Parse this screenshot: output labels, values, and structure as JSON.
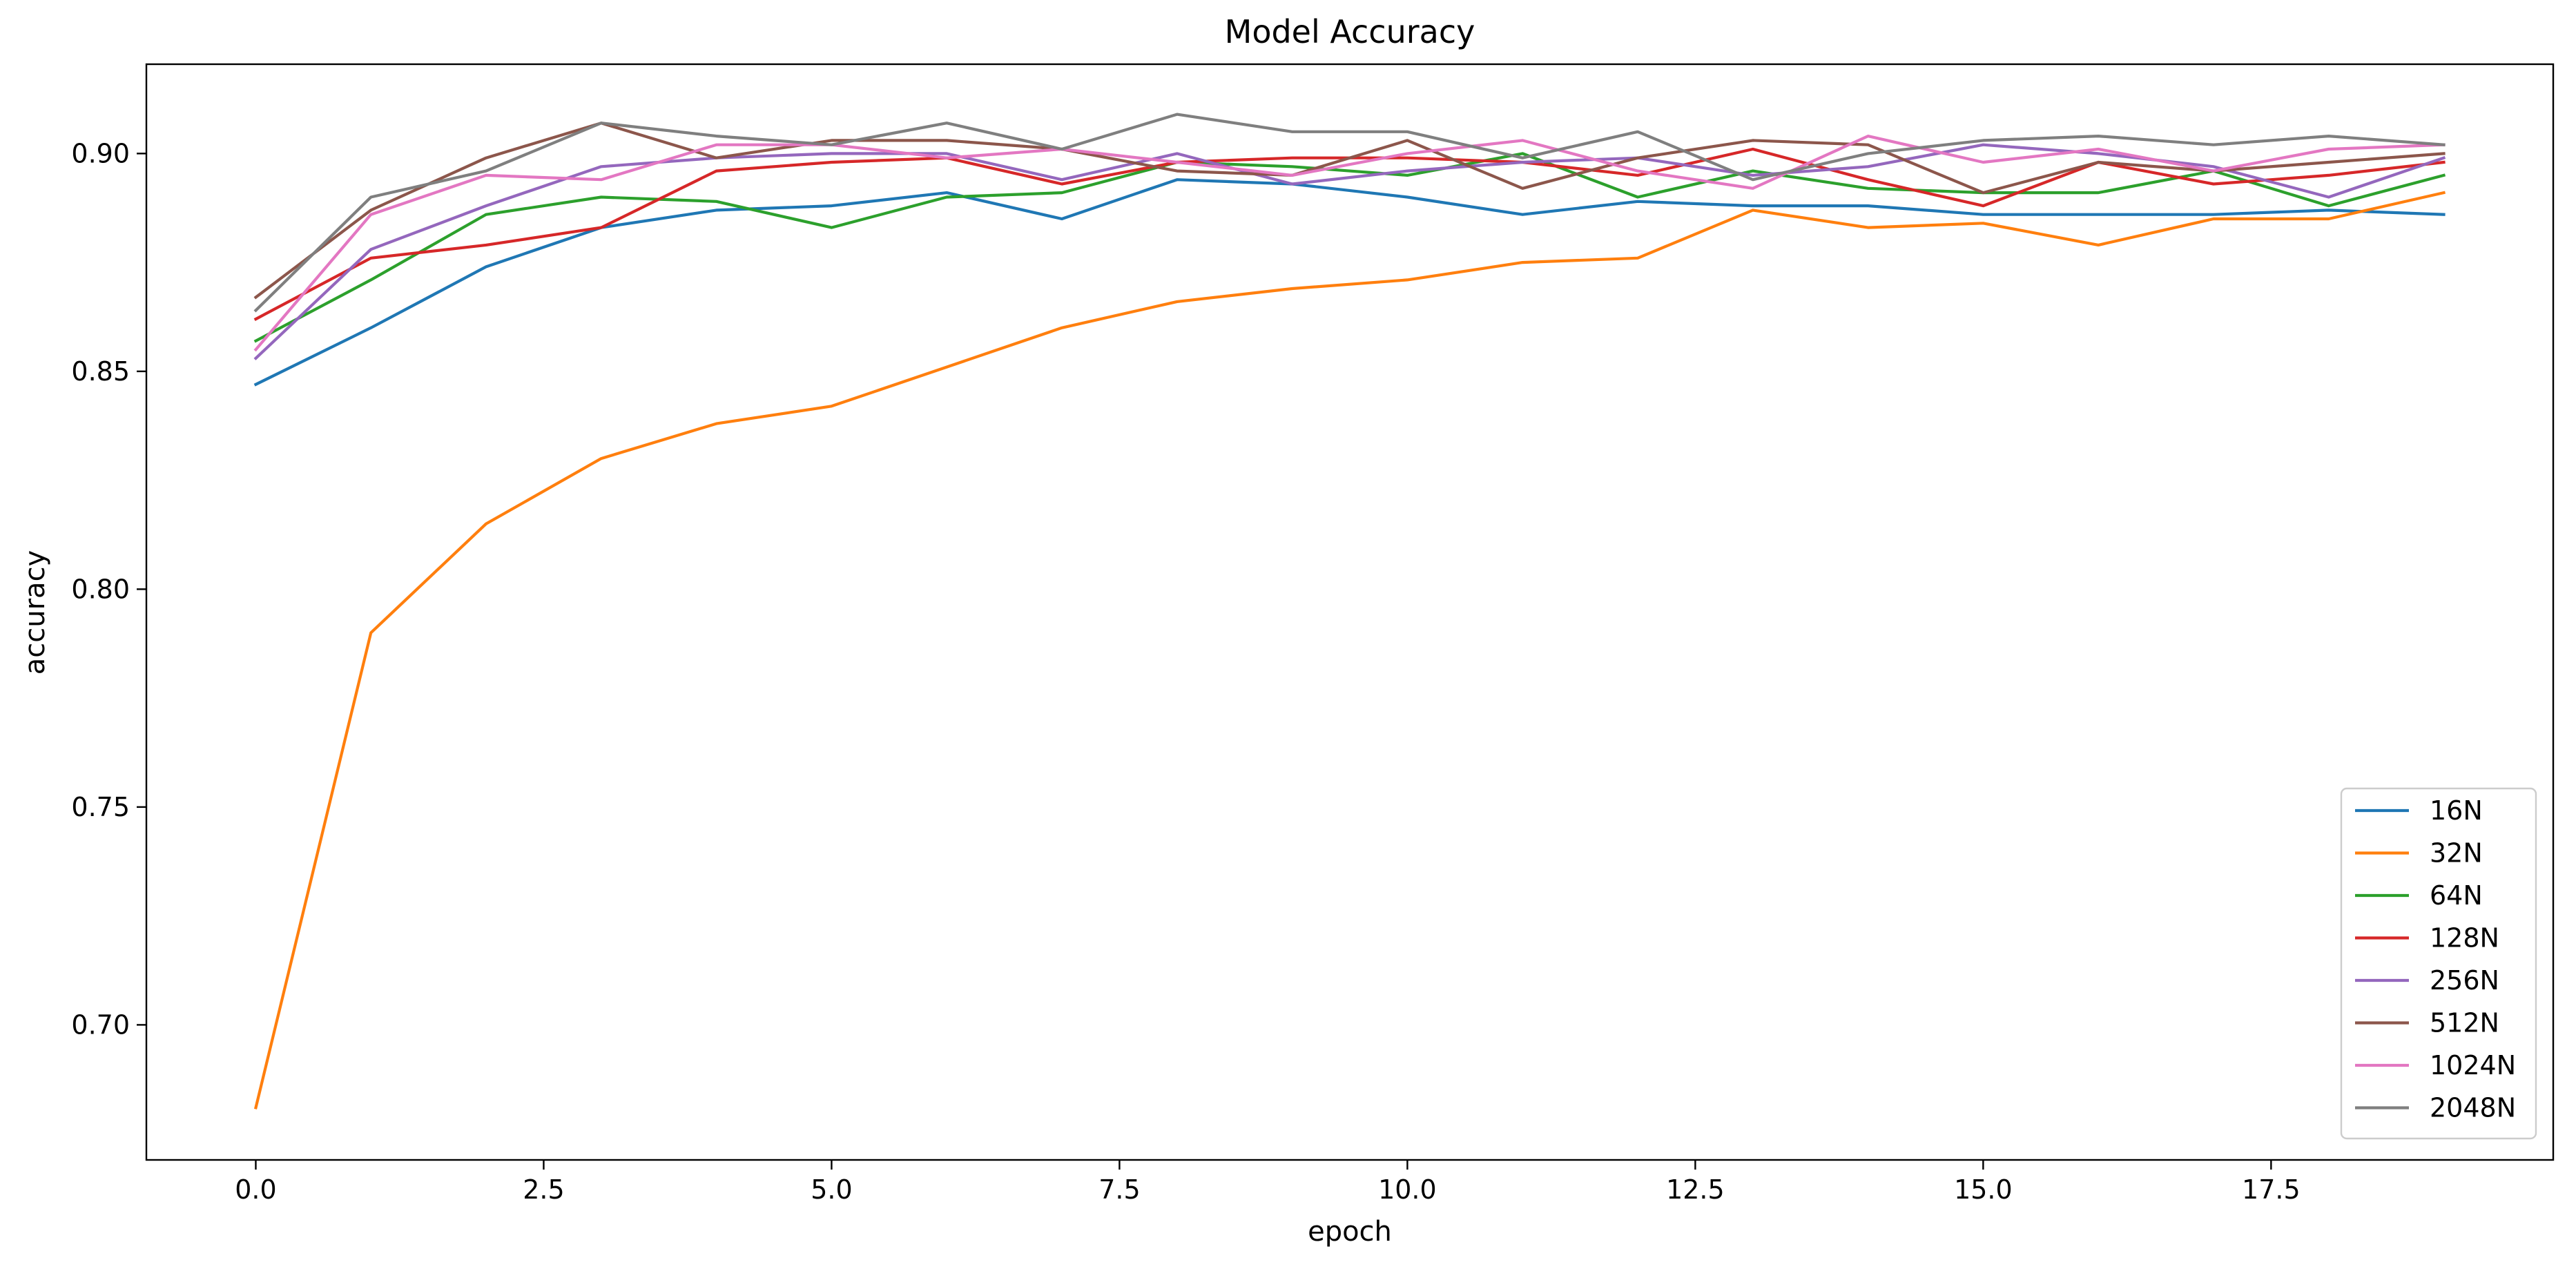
{
  "chart_data": {
    "type": "line",
    "title": "Model Accuracy",
    "xlabel": "epoch",
    "ylabel": "accuracy",
    "xlim": [
      -0.95,
      19.95
    ],
    "ylim": [
      0.669,
      0.9205
    ],
    "x": [
      0,
      1,
      2,
      3,
      4,
      5,
      6,
      7,
      8,
      9,
      10,
      11,
      12,
      13,
      14,
      15,
      16,
      17,
      18,
      19
    ],
    "x_ticks": [
      0.0,
      2.5,
      5.0,
      7.5,
      10.0,
      12.5,
      15.0,
      17.5
    ],
    "x_tick_labels": [
      "0.0",
      "2.5",
      "5.0",
      "7.5",
      "10.0",
      "12.5",
      "15.0",
      "17.5"
    ],
    "y_ticks": [
      0.7,
      0.75,
      0.8,
      0.85,
      0.9
    ],
    "y_tick_labels": [
      "0.70",
      "0.75",
      "0.80",
      "0.85",
      "0.90"
    ],
    "grid": false,
    "legend_position": "lower-right",
    "series": [
      {
        "name": "16N",
        "color": "#1f77b4",
        "values": [
          0.847,
          0.86,
          0.874,
          0.883,
          0.887,
          0.888,
          0.891,
          0.885,
          0.894,
          0.893,
          0.89,
          0.886,
          0.889,
          0.888,
          0.888,
          0.886,
          0.886,
          0.886,
          0.887,
          0.886
        ]
      },
      {
        "name": "32N",
        "color": "#ff7f0e",
        "values": [
          0.681,
          0.79,
          0.815,
          0.83,
          0.838,
          0.842,
          0.851,
          0.86,
          0.866,
          0.869,
          0.871,
          0.875,
          0.876,
          0.887,
          0.883,
          0.884,
          0.879,
          0.885,
          0.885,
          0.891
        ]
      },
      {
        "name": "64N",
        "color": "#2ca02c",
        "values": [
          0.857,
          0.871,
          0.886,
          0.89,
          0.889,
          0.883,
          0.89,
          0.891,
          0.898,
          0.897,
          0.895,
          0.9,
          0.89,
          0.896,
          0.892,
          0.891,
          0.891,
          0.896,
          0.888,
          0.895
        ]
      },
      {
        "name": "128N",
        "color": "#d62728",
        "values": [
          0.862,
          0.876,
          0.879,
          0.883,
          0.896,
          0.898,
          0.899,
          0.893,
          0.898,
          0.899,
          0.899,
          0.898,
          0.895,
          0.901,
          0.894,
          0.888,
          0.898,
          0.893,
          0.895,
          0.898
        ]
      },
      {
        "name": "256N",
        "color": "#9467bd",
        "values": [
          0.853,
          0.878,
          0.888,
          0.897,
          0.899,
          0.9,
          0.9,
          0.894,
          0.9,
          0.893,
          0.896,
          0.898,
          0.899,
          0.895,
          0.897,
          0.902,
          0.9,
          0.897,
          0.89,
          0.899
        ]
      },
      {
        "name": "512N",
        "color": "#8c564b",
        "values": [
          0.867,
          0.887,
          0.899,
          0.907,
          0.899,
          0.903,
          0.903,
          0.901,
          0.896,
          0.895,
          0.903,
          0.892,
          0.899,
          0.903,
          0.902,
          0.891,
          0.898,
          0.896,
          0.898,
          0.9
        ]
      },
      {
        "name": "1024N",
        "color": "#e377c2",
        "values": [
          0.855,
          0.886,
          0.895,
          0.894,
          0.902,
          0.902,
          0.899,
          0.901,
          0.898,
          0.895,
          0.9,
          0.903,
          0.896,
          0.892,
          0.904,
          0.898,
          0.901,
          0.896,
          0.901,
          0.902
        ]
      },
      {
        "name": "2048N",
        "color": "#7f7f7f",
        "values": [
          0.864,
          0.89,
          0.896,
          0.907,
          0.904,
          0.902,
          0.907,
          0.901,
          0.909,
          0.905,
          0.905,
          0.899,
          0.905,
          0.894,
          0.9,
          0.903,
          0.904,
          0.902,
          0.904,
          0.902
        ]
      }
    ]
  }
}
